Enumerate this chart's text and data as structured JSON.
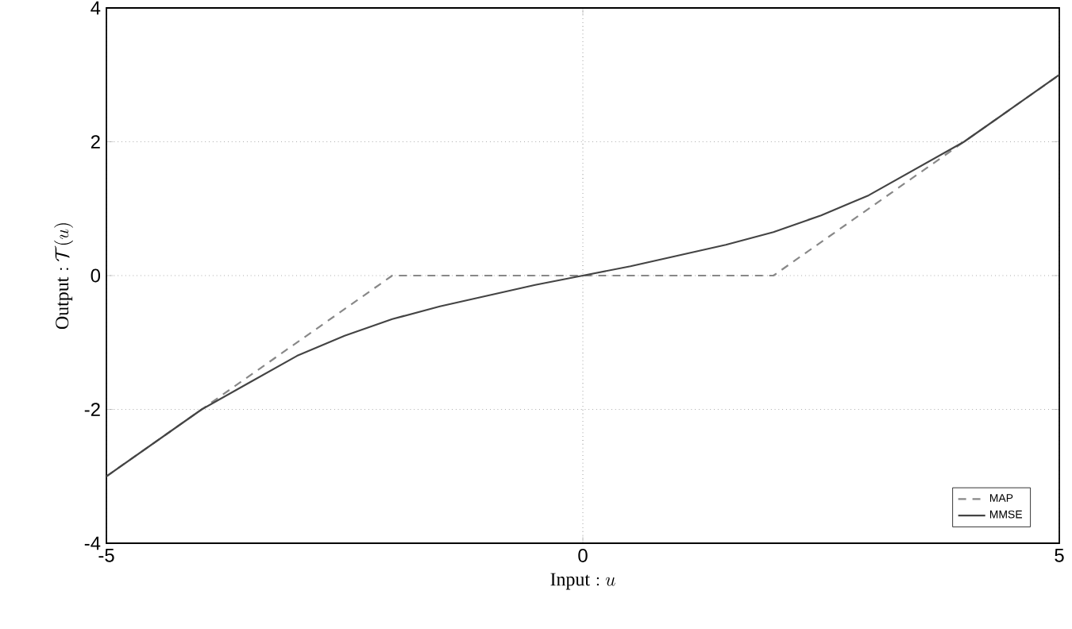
{
  "chart_data": {
    "type": "line",
    "xlabel": "\\mathrm{Input:}\\ u",
    "ylabel": "\\mathrm{Output:}\\ \\mathcal{T}(u)",
    "xlim": [
      -5,
      5
    ],
    "ylim": [
      -4,
      4
    ],
    "xticks": [
      -5,
      0,
      5
    ],
    "yticks": [
      -4,
      -2,
      0,
      2,
      4
    ],
    "grid": true,
    "legend": "bottom right",
    "marker": "none",
    "series": [
      {
        "name": "MAP",
        "color": "#888888",
        "line_style": "dashed",
        "x": [
          -5,
          -2,
          2,
          5
        ],
        "values": [
          -3,
          0,
          0,
          3
        ]
      },
      {
        "name": "MMSE",
        "color": "#444444",
        "line_style": "solid",
        "x": [
          -5,
          -4.5,
          -4,
          -3.5,
          -3,
          -2.5,
          -2,
          -1.5,
          -1,
          -0.5,
          0,
          0.5,
          1,
          1.5,
          2,
          2.5,
          3,
          3.5,
          4,
          4.5,
          5
        ],
        "values": [
          -3,
          -2.5,
          -2,
          -1.6,
          -1.2,
          -0.9,
          -0.65,
          -0.46,
          -0.3,
          -0.14,
          0,
          0.14,
          0.3,
          0.46,
          0.65,
          0.9,
          1.2,
          1.6,
          2,
          2.5,
          3
        ]
      }
    ]
  }
}
